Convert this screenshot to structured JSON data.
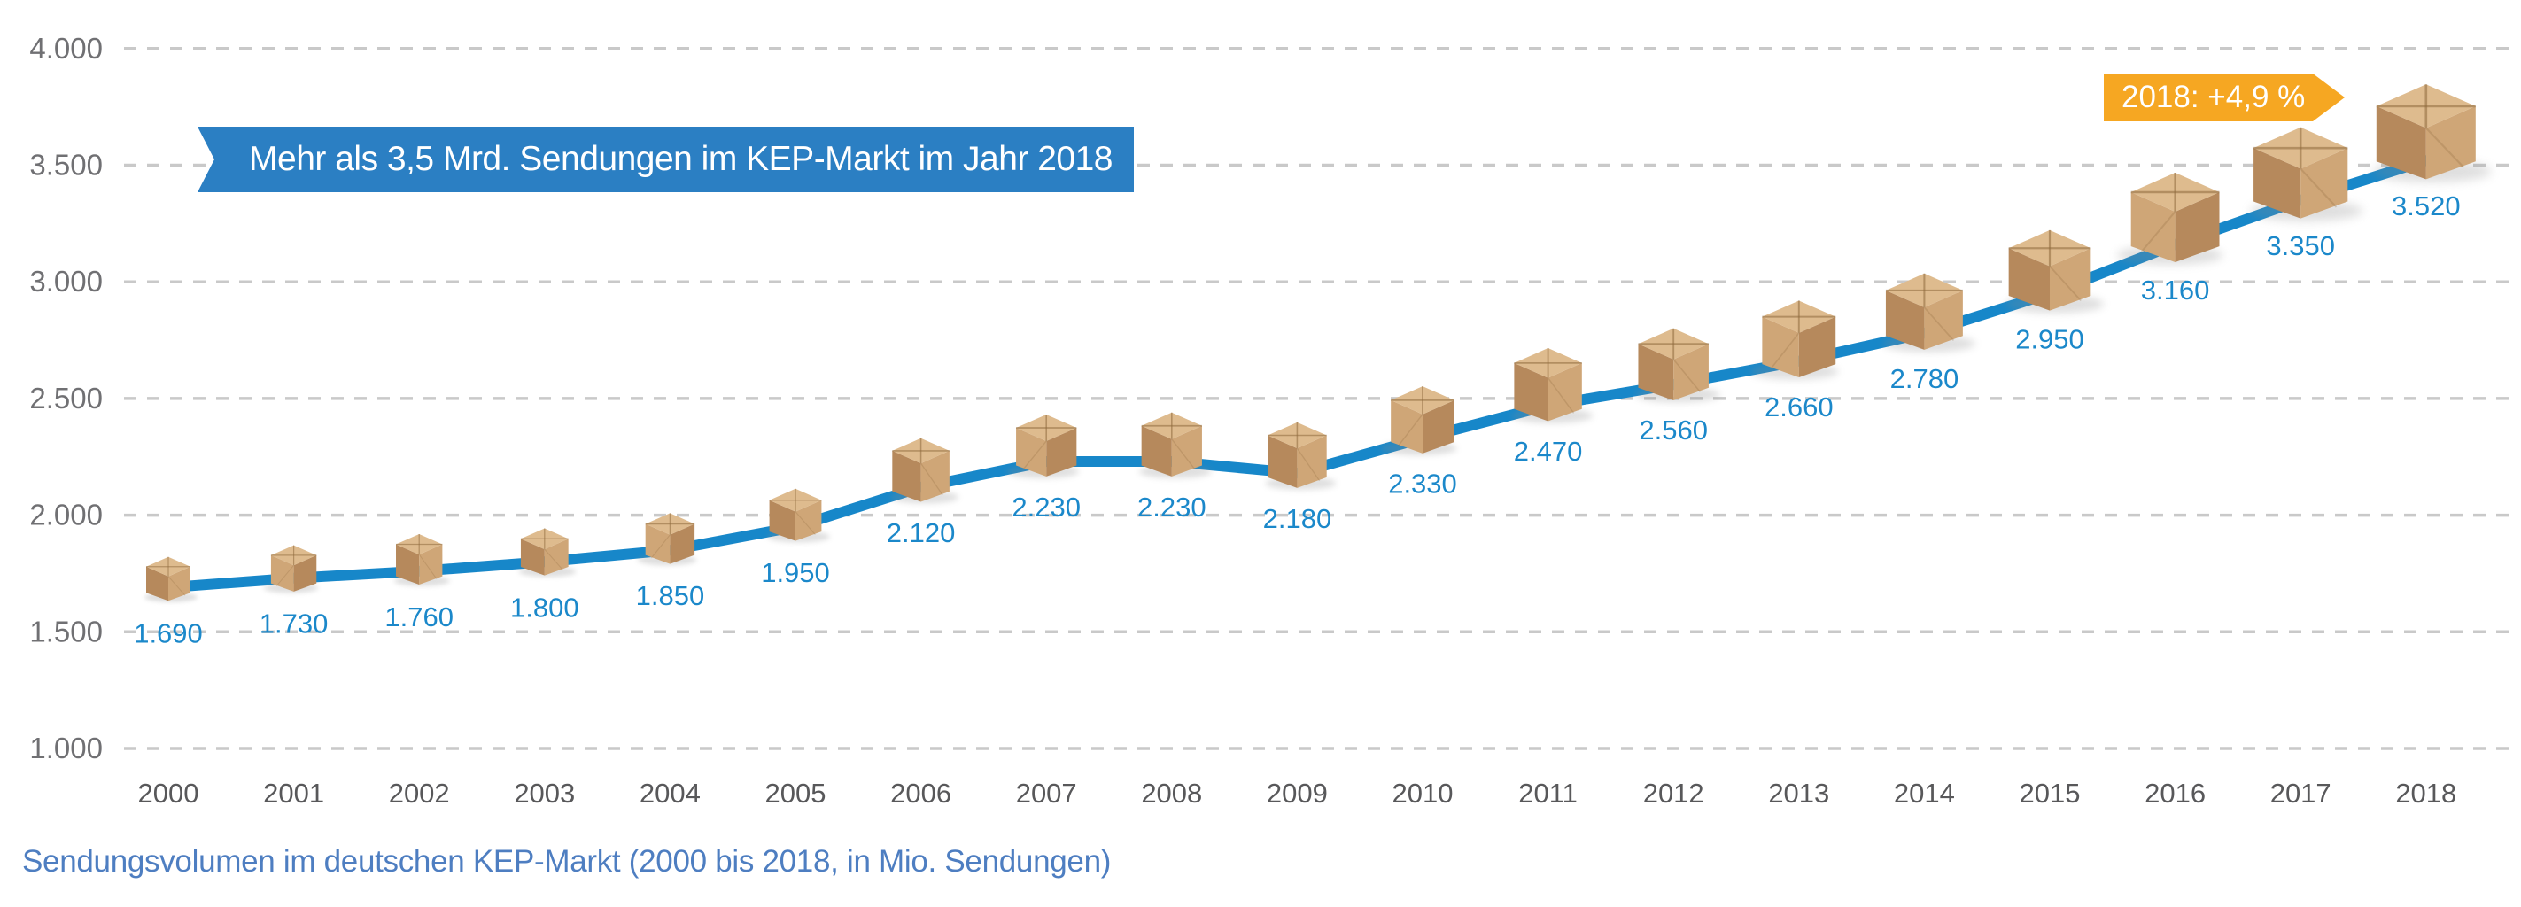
{
  "chart_data": {
    "type": "line",
    "title_banner": "Mehr als 3,5 Mrd. Sendungen im KEP-Markt im Jahr 2018",
    "growth_badge": "2018: +4,9 %",
    "caption": "Sendungsvolumen im deutschen KEP-Markt (2000 bis 2018, in Mio. Sendungen)",
    "categories": [
      "2000",
      "2001",
      "2002",
      "2003",
      "2004",
      "2005",
      "2006",
      "2007",
      "2008",
      "2009",
      "2010",
      "2011",
      "2012",
      "2013",
      "2014",
      "2015",
      "2016",
      "2017",
      "2018"
    ],
    "values": [
      1690,
      1730,
      1760,
      1800,
      1850,
      1950,
      2120,
      2230,
      2230,
      2180,
      2330,
      2470,
      2560,
      2660,
      2780,
      2950,
      3160,
      3350,
      3520
    ],
    "value_labels": [
      "1.690",
      "1.730",
      "1.760",
      "1.800",
      "1.850",
      "1.950",
      "2.120",
      "2.230",
      "2.230",
      "2.180",
      "2.330",
      "2.470",
      "2.560",
      "2.660",
      "2.780",
      "2.950",
      "3.160",
      "3.350",
      "3.520"
    ],
    "ylim": [
      1000,
      4000
    ],
    "y_ticks": [
      {
        "value": 4000,
        "label": "4.000"
      },
      {
        "value": 3500,
        "label": "3.500"
      },
      {
        "value": 3000,
        "label": "3.000"
      },
      {
        "value": 2500,
        "label": "2.500"
      },
      {
        "value": 2000,
        "label": "2.000"
      },
      {
        "value": 1500,
        "label": "1.500"
      },
      {
        "value": 1000,
        "label": "1.000"
      }
    ],
    "grid": "horizontal-dashed",
    "legend": "none",
    "point_marker": "cardboard-package-box",
    "colors": {
      "line": "#1787c9",
      "value_label": "#1b88ca",
      "banner_bg": "#2b7fc3",
      "banner_text": "#ffffff",
      "badge_bg": "#f6a722",
      "badge_text": "#ffffff",
      "caption_text": "#4e7ec1",
      "grid_line": "#c9c9c9",
      "y_tick_text": "#707073",
      "year_text": "#58585a",
      "box_top": "#debb8e",
      "box_left": "#b6895c",
      "box_right": "#cfa677",
      "box_crease": "#8f6a3e"
    }
  }
}
